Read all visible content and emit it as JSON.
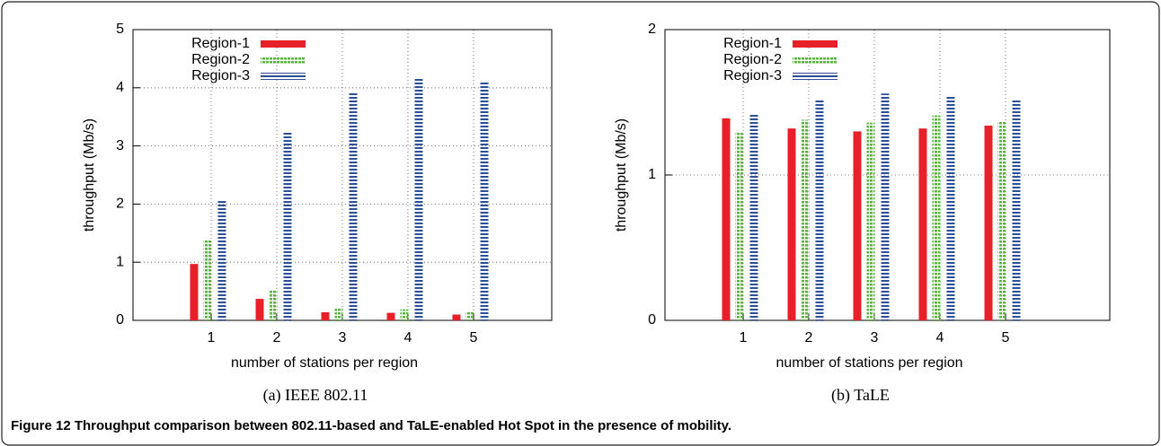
{
  "figure_caption": "Figure 12 Throughput comparison between 802.11-based and TaLE-enabled Hot Spot in the presence of mobility.",
  "chart_data": [
    {
      "type": "bar",
      "subtitle": "(a) IEEE 802.11",
      "x_label": "number of stations per region",
      "y_label": "throughput (Mb/s)",
      "categories": [
        "1",
        "2",
        "3",
        "4",
        "5"
      ],
      "series": [
        {
          "name": "Region-1",
          "color": "#e8202a",
          "values": [
            0.97,
            0.37,
            0.14,
            0.13,
            0.1
          ]
        },
        {
          "name": "Region-2",
          "color": "#5ab33c",
          "values": [
            1.39,
            0.53,
            0.2,
            0.19,
            0.16
          ]
        },
        {
          "name": "Region-3",
          "color": "#2c4f98",
          "values": [
            2.08,
            3.25,
            3.93,
            4.18,
            4.12
          ]
        }
      ],
      "ylim": [
        0,
        5
      ],
      "yticks": [
        0,
        1,
        2,
        3,
        4,
        5
      ],
      "grid": true,
      "legend": "upper left"
    },
    {
      "type": "bar",
      "subtitle": "(b) TaLE",
      "x_label": "number of stations per region",
      "y_label": "throughput (Mb/s)",
      "categories": [
        "1",
        "2",
        "3",
        "4",
        "5"
      ],
      "series": [
        {
          "name": "Region-1",
          "color": "#e8202a",
          "values": [
            1.39,
            1.32,
            1.3,
            1.32,
            1.34
          ]
        },
        {
          "name": "Region-2",
          "color": "#5ab33c",
          "values": [
            1.29,
            1.38,
            1.36,
            1.41,
            1.37
          ]
        },
        {
          "name": "Region-3",
          "color": "#2c4f98",
          "values": [
            1.42,
            1.52,
            1.56,
            1.54,
            1.52
          ]
        }
      ],
      "ylim": [
        0,
        2
      ],
      "yticks": [
        0,
        1,
        2
      ],
      "grid": true,
      "legend": "upper left"
    }
  ]
}
